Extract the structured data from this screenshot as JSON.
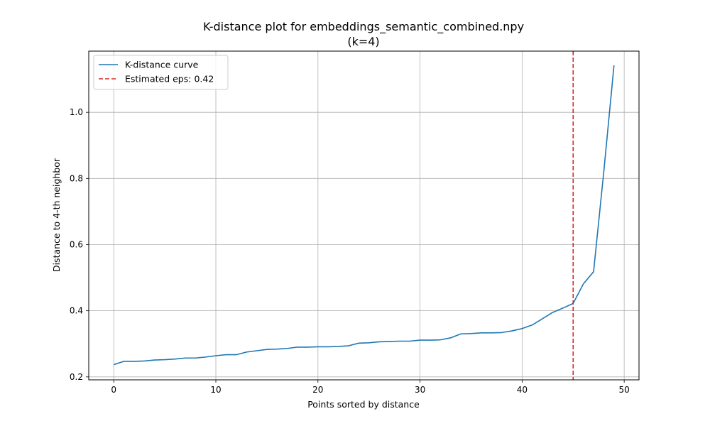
{
  "chart_data": {
    "type": "line",
    "title": "K-distance plot for embeddings_semantic_combined.npy",
    "subtitle": "(k=4)",
    "xlabel": "Points sorted by distance",
    "ylabel": "Distance to 4-th neighbor",
    "xlim": [
      -2.45,
      51.45
    ],
    "ylim": [
      0.191,
      1.185
    ],
    "xticks": [
      0,
      10,
      20,
      30,
      40,
      50
    ],
    "xtick_labels": [
      "0",
      "10",
      "20",
      "30",
      "40",
      "50"
    ],
    "yticks": [
      0.2,
      0.4,
      0.6,
      0.8,
      1.0
    ],
    "ytick_labels": [
      "0.2",
      "0.4",
      "0.6",
      "0.8",
      "1.0"
    ],
    "grid": true,
    "legend_position": "top-left",
    "series": [
      {
        "name": "K-distance curve",
        "color": "#1f77b4",
        "style": "solid",
        "x": [
          0,
          1,
          2,
          3,
          4,
          5,
          6,
          7,
          8,
          9,
          10,
          11,
          12,
          13,
          14,
          15,
          16,
          17,
          18,
          19,
          20,
          21,
          22,
          23,
          24,
          25,
          26,
          27,
          28,
          29,
          30,
          31,
          32,
          33,
          34,
          35,
          36,
          37,
          38,
          39,
          40,
          41,
          42,
          43,
          44,
          45,
          46,
          47,
          48,
          49
        ],
        "values": [
          0.237,
          0.247,
          0.247,
          0.248,
          0.251,
          0.252,
          0.254,
          0.257,
          0.257,
          0.26,
          0.264,
          0.267,
          0.267,
          0.275,
          0.279,
          0.283,
          0.284,
          0.286,
          0.29,
          0.29,
          0.291,
          0.291,
          0.292,
          0.294,
          0.302,
          0.303,
          0.306,
          0.307,
          0.308,
          0.308,
          0.311,
          0.311,
          0.312,
          0.318,
          0.33,
          0.331,
          0.333,
          0.333,
          0.334,
          0.339,
          0.346,
          0.357,
          0.376,
          0.395,
          0.408,
          0.422,
          0.481,
          0.518,
          0.82,
          1.142
        ]
      }
    ],
    "vline": {
      "name": "Estimated eps: 0.42",
      "x": 45,
      "color": "#d62728",
      "style": "dashed"
    }
  }
}
